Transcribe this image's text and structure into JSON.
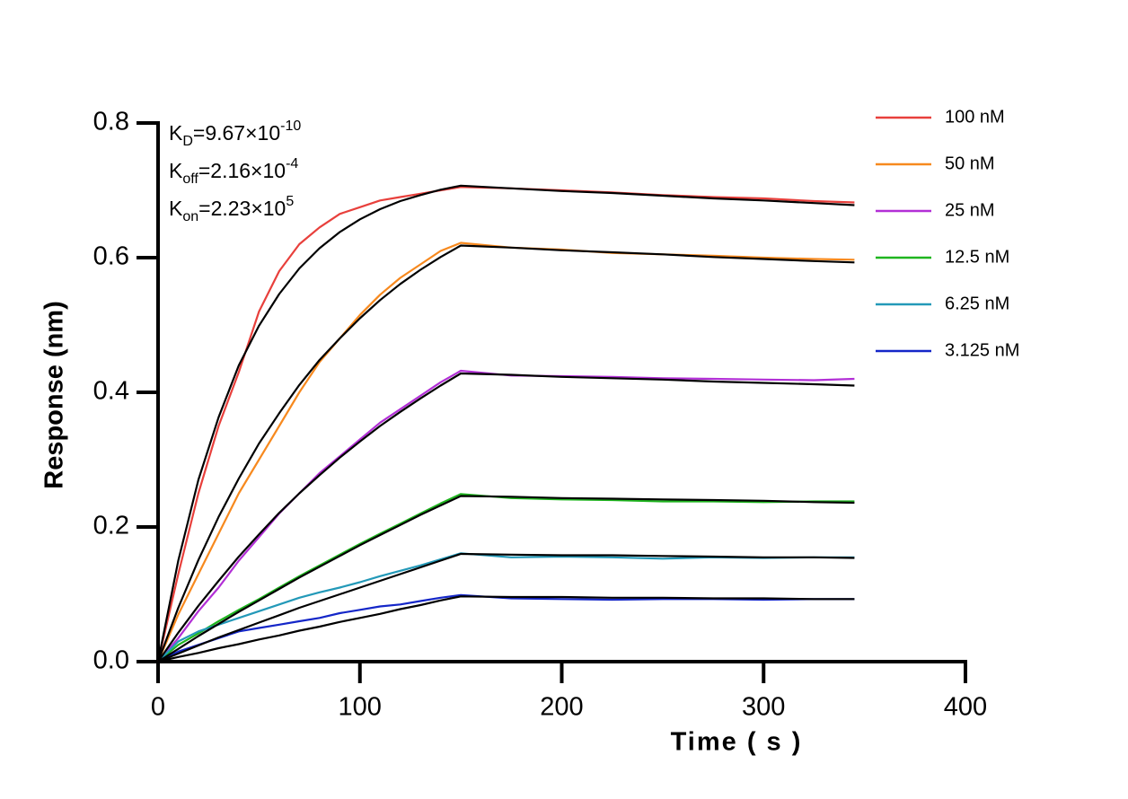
{
  "chart_data": {
    "type": "line",
    "xlabel": "Time ( s )",
    "ylabel": "Response (nm)",
    "xlim": [
      0,
      400
    ],
    "ylim": [
      0,
      0.8
    ],
    "xticks": [
      0,
      100,
      200,
      300,
      400
    ],
    "yticks": [
      {
        "value": 0,
        "label": "0.0"
      },
      {
        "value": 0.2,
        "label": "0.2"
      },
      {
        "value": 0.4,
        "label": "0.4"
      },
      {
        "value": 0.6,
        "label": "0.6"
      },
      {
        "value": 0.8,
        "label": "0.8"
      }
    ],
    "legend": "right",
    "annotations": [
      {
        "main": "K",
        "sub": "D",
        "text": "=9.67×10",
        "sup": "-10"
      },
      {
        "main": "K",
        "sub": "off",
        "text": "=2.16×10",
        "sup": "-4"
      },
      {
        "main": "K",
        "sub": "on",
        "text": "=2.23×10",
        "sup": "5"
      }
    ],
    "x": [
      0,
      10,
      20,
      30,
      40,
      50,
      60,
      70,
      80,
      90,
      100,
      110,
      120,
      130,
      140,
      150,
      175,
      200,
      225,
      250,
      275,
      300,
      325,
      345
    ],
    "series": [
      {
        "name": "100 nM",
        "color": "#e8403c",
        "values": [
          0,
          0.13,
          0.25,
          0.35,
          0.43,
          0.52,
          0.58,
          0.62,
          0.645,
          0.665,
          0.675,
          0.685,
          0.69,
          0.695,
          0.7,
          0.705,
          0.703,
          0.7,
          0.697,
          0.693,
          0.69,
          0.688,
          0.684,
          0.682
        ]
      },
      {
        "name": "50 nM",
        "color": "#f7891e",
        "values": [
          0,
          0.07,
          0.13,
          0.19,
          0.25,
          0.3,
          0.35,
          0.4,
          0.445,
          0.48,
          0.515,
          0.545,
          0.57,
          0.59,
          0.61,
          0.622,
          0.615,
          0.612,
          0.607,
          0.605,
          0.603,
          0.6,
          0.598,
          0.597
        ]
      },
      {
        "name": "25 nM",
        "color": "#b22fd6",
        "values": [
          0,
          0.035,
          0.075,
          0.11,
          0.15,
          0.185,
          0.22,
          0.25,
          0.28,
          0.305,
          0.33,
          0.355,
          0.375,
          0.395,
          0.415,
          0.432,
          0.425,
          0.424,
          0.423,
          0.421,
          0.42,
          0.419,
          0.418,
          0.42
        ]
      },
      {
        "name": "12.5 nM",
        "color": "#1fb51f",
        "values": [
          0,
          0.025,
          0.042,
          0.06,
          0.077,
          0.093,
          0.11,
          0.127,
          0.143,
          0.159,
          0.175,
          0.19,
          0.205,
          0.22,
          0.235,
          0.249,
          0.243,
          0.241,
          0.24,
          0.238,
          0.238,
          0.237,
          0.238,
          0.238
        ]
      },
      {
        "name": "6.25 nM",
        "color": "#2399b8",
        "values": [
          0,
          0.03,
          0.045,
          0.055,
          0.065,
          0.075,
          0.085,
          0.095,
          0.103,
          0.11,
          0.118,
          0.127,
          0.135,
          0.143,
          0.152,
          0.161,
          0.155,
          0.156,
          0.155,
          0.153,
          0.155,
          0.154,
          0.155,
          0.155
        ]
      },
      {
        "name": "3.125 nM",
        "color": "#1426c8",
        "values": [
          0,
          0.015,
          0.025,
          0.035,
          0.045,
          0.05,
          0.055,
          0.06,
          0.065,
          0.072,
          0.077,
          0.082,
          0.085,
          0.09,
          0.095,
          0.099,
          0.094,
          0.093,
          0.092,
          0.093,
          0.093,
          0.092,
          0.093,
          0.093
        ]
      }
    ],
    "fits": [
      {
        "color": "#000000",
        "values": [
          0,
          0.15,
          0.27,
          0.363,
          0.44,
          0.499,
          0.546,
          0.584,
          0.614,
          0.638,
          0.657,
          0.672,
          0.684,
          0.693,
          0.701,
          0.707,
          0.703,
          0.699,
          0.696,
          0.692,
          0.688,
          0.685,
          0.681,
          0.678
        ]
      },
      {
        "color": "#000000",
        "values": [
          0,
          0.08,
          0.151,
          0.215,
          0.272,
          0.324,
          0.369,
          0.411,
          0.448,
          0.48,
          0.51,
          0.537,
          0.561,
          0.582,
          0.601,
          0.618,
          0.615,
          0.611,
          0.608,
          0.605,
          0.601,
          0.598,
          0.595,
          0.593
        ]
      },
      {
        "color": "#000000",
        "values": [
          0,
          0.043,
          0.083,
          0.12,
          0.156,
          0.189,
          0.221,
          0.25,
          0.277,
          0.303,
          0.327,
          0.35,
          0.371,
          0.391,
          0.41,
          0.428,
          0.426,
          0.423,
          0.421,
          0.419,
          0.416,
          0.414,
          0.412,
          0.41
        ]
      },
      {
        "color": "#000000",
        "values": [
          0,
          0.019,
          0.038,
          0.056,
          0.074,
          0.091,
          0.108,
          0.125,
          0.141,
          0.157,
          0.173,
          0.188,
          0.203,
          0.218,
          0.232,
          0.246,
          0.245,
          0.243,
          0.242,
          0.241,
          0.24,
          0.239,
          0.237,
          0.236
        ]
      },
      {
        "color": "#000000",
        "values": [
          0,
          0.012,
          0.024,
          0.036,
          0.047,
          0.058,
          0.069,
          0.08,
          0.09,
          0.1,
          0.11,
          0.12,
          0.13,
          0.14,
          0.15,
          0.16,
          0.159,
          0.158,
          0.158,
          0.157,
          0.156,
          0.155,
          0.155,
          0.154
        ]
      },
      {
        "color": "#000000",
        "values": [
          0,
          0.007,
          0.013,
          0.02,
          0.026,
          0.033,
          0.039,
          0.046,
          0.052,
          0.059,
          0.065,
          0.071,
          0.078,
          0.084,
          0.091,
          0.097,
          0.096,
          0.096,
          0.095,
          0.095,
          0.094,
          0.094,
          0.093,
          0.093
        ]
      }
    ]
  }
}
